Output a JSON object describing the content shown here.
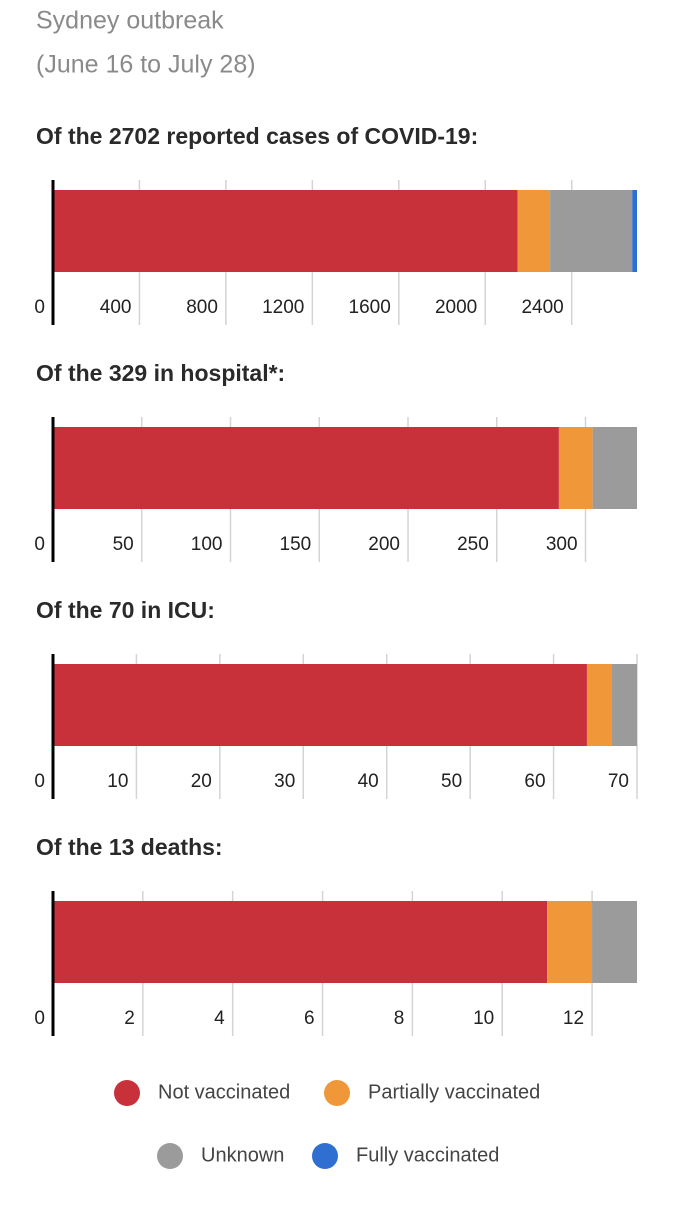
{
  "title": "Sydney outbreak",
  "subtitle": "(June 16 to July 28)",
  "chart_data": [
    {
      "type": "bar",
      "orientation": "horizontal",
      "stacked": true,
      "title": "Of the 2702 reported cases of COVID-19:",
      "series": [
        {
          "name": "Not vaccinated",
          "color": "#c8303a",
          "values": [
            2150
          ]
        },
        {
          "name": "Partially vaccinated",
          "color": "#f0973a",
          "values": [
            150
          ]
        },
        {
          "name": "Unknown",
          "color": "#9b9b9b",
          "values": [
            380
          ]
        },
        {
          "name": "Fully vaccinated",
          "color": "#2f6fd1",
          "values": [
            22
          ]
        }
      ],
      "xlim": [
        0,
        2702
      ],
      "xticks": [
        0,
        400,
        800,
        1200,
        1600,
        2000,
        2400
      ],
      "grid": true
    },
    {
      "type": "bar",
      "orientation": "horizontal",
      "stacked": true,
      "title": "Of the 329 in hospital*:",
      "series": [
        {
          "name": "Not vaccinated",
          "color": "#c8303a",
          "values": [
            285
          ]
        },
        {
          "name": "Partially vaccinated",
          "color": "#f0973a",
          "values": [
            19
          ]
        },
        {
          "name": "Unknown",
          "color": "#9b9b9b",
          "values": [
            25
          ]
        }
      ],
      "xlim": [
        0,
        329
      ],
      "xticks": [
        0,
        50,
        100,
        150,
        200,
        250,
        300
      ],
      "grid": true
    },
    {
      "type": "bar",
      "orientation": "horizontal",
      "stacked": true,
      "title": "Of the 70 in ICU:",
      "series": [
        {
          "name": "Not vaccinated",
          "color": "#c8303a",
          "values": [
            64
          ]
        },
        {
          "name": "Partially vaccinated",
          "color": "#f0973a",
          "values": [
            3
          ]
        },
        {
          "name": "Unknown",
          "color": "#9b9b9b",
          "values": [
            3
          ]
        }
      ],
      "xlim": [
        0,
        70
      ],
      "xticks": [
        0,
        10,
        20,
        30,
        40,
        50,
        60,
        70
      ],
      "grid": true
    },
    {
      "type": "bar",
      "orientation": "horizontal",
      "stacked": true,
      "title": "Of the 13 deaths:",
      "series": [
        {
          "name": "Not vaccinated",
          "color": "#c8303a",
          "values": [
            11
          ]
        },
        {
          "name": "Partially vaccinated",
          "color": "#f0973a",
          "values": [
            1
          ]
        },
        {
          "name": "Unknown",
          "color": "#9b9b9b",
          "values": [
            1
          ]
        }
      ],
      "xlim": [
        0,
        13
      ],
      "xticks": [
        0,
        2,
        4,
        6,
        8,
        10,
        12
      ],
      "grid": true
    }
  ]
}
